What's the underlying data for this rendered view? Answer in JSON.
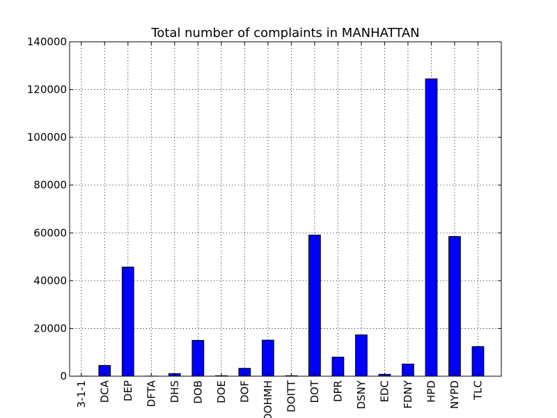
{
  "chart_data": {
    "type": "bar",
    "title": "Total number of complaints in MANHATTAN",
    "xlabel": "",
    "ylabel": "",
    "categories": [
      "3-1-1",
      "DCA",
      "DEP",
      "DFTA",
      "DHS",
      "DOB",
      "DOE",
      "DOF",
      "DOHMH",
      "DOITT",
      "DOT",
      "DPR",
      "DSNY",
      "EDC",
      "FDNY",
      "HPD",
      "NYPD",
      "TLC"
    ],
    "values": [
      30,
      4500,
      45700,
      50,
      1100,
      15000,
      200,
      3300,
      15100,
      200,
      59100,
      8000,
      17300,
      800,
      5100,
      124500,
      58500,
      12400
    ],
    "ylim": [
      0,
      140000
    ],
    "yticks": [
      0,
      20000,
      40000,
      60000,
      80000,
      100000,
      120000,
      140000
    ],
    "grid": true,
    "bar_color": "#0000ff"
  }
}
